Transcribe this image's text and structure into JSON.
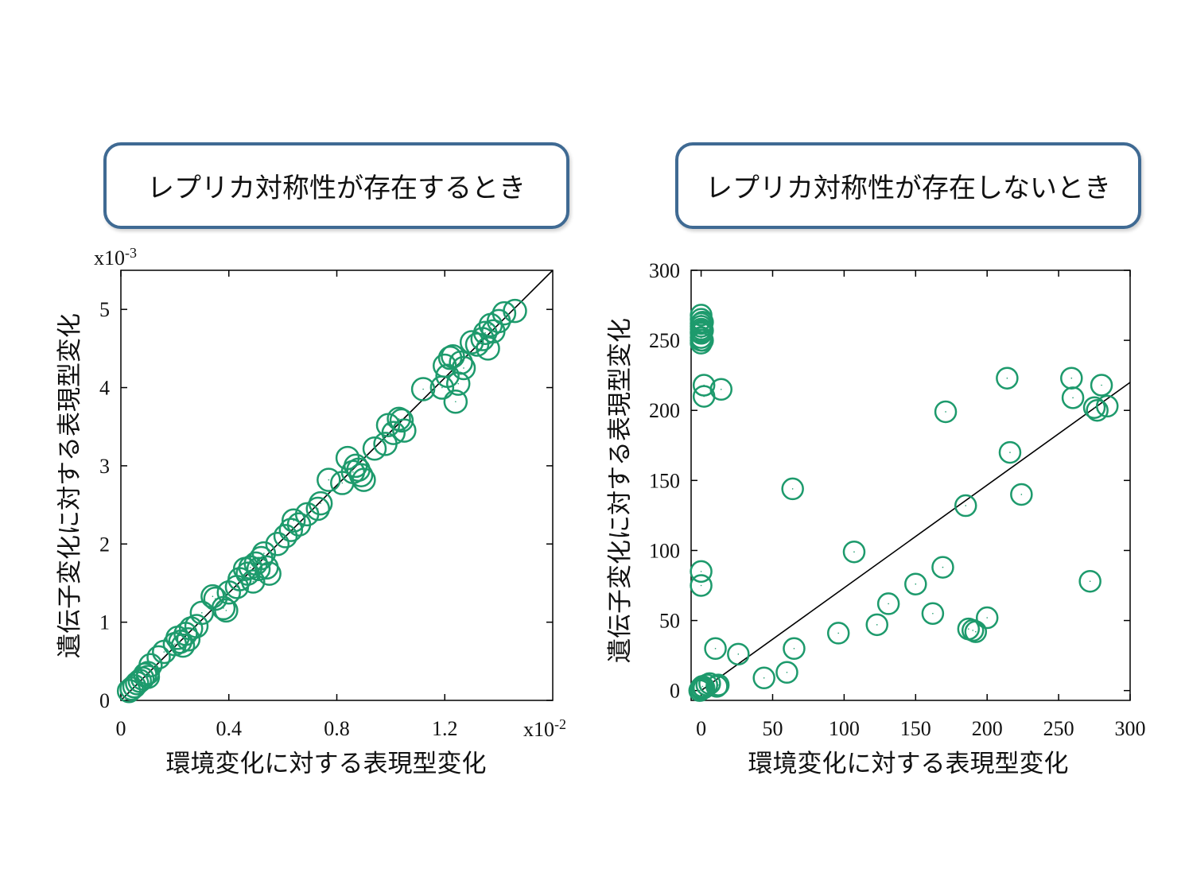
{
  "chart_data": [
    {
      "type": "scatter",
      "title": "レプリカ対称性が存在するとき",
      "xlabel": "環境変化に対する表現型変化",
      "ylabel": "遺伝子変化に対する表現型変化",
      "x_multiplier": "x10",
      "x_multiplier_exp": "-2",
      "y_multiplier": "x10",
      "y_multiplier_exp": "-3",
      "xlim": [
        0,
        1.6
      ],
      "ylim": [
        0,
        5.5
      ],
      "xticks": [
        "0",
        "0.4",
        "0.8",
        "1.2"
      ],
      "xtick_values": [
        0,
        0.4,
        0.8,
        1.2
      ],
      "yticks": [
        "0",
        "1",
        "2",
        "3",
        "4",
        "5"
      ],
      "ytick_values": [
        0,
        1,
        2,
        3,
        4,
        5
      ],
      "point_color": "#1d9a6c",
      "fit_line": {
        "x": [
          0,
          1.6
        ],
        "y": [
          0,
          5.5
        ]
      },
      "series": [
        {
          "x": [
            0.03,
            0.04,
            0.05,
            0.06,
            0.07,
            0.08,
            0.09,
            0.1,
            0.1,
            0.11,
            0.14,
            0.16,
            0.2,
            0.21,
            0.22,
            0.23,
            0.24,
            0.25,
            0.26,
            0.28,
            0.3,
            0.34,
            0.35,
            0.38,
            0.39,
            0.4,
            0.43,
            0.44,
            0.46,
            0.47,
            0.48,
            0.49,
            0.5,
            0.51,
            0.52,
            0.53,
            0.54,
            0.55,
            0.58,
            0.61,
            0.63,
            0.64,
            0.66,
            0.69,
            0.73,
            0.74,
            0.77,
            0.82,
            0.84,
            0.86,
            0.87,
            0.88,
            0.89,
            0.9,
            0.94,
            0.98,
            0.99,
            1.01,
            1.03,
            1.04,
            1.05,
            1.12,
            1.19,
            1.2,
            1.21,
            1.22,
            1.23,
            1.24,
            1.25,
            1.26,
            1.27,
            1.3,
            1.32,
            1.34,
            1.35,
            1.36,
            1.37,
            1.38,
            1.4,
            1.42,
            1.46
          ],
          "y": [
            0.12,
            0.15,
            0.18,
            0.22,
            0.25,
            0.28,
            0.33,
            0.35,
            0.3,
            0.45,
            0.55,
            0.62,
            0.72,
            0.8,
            0.75,
            0.7,
            0.85,
            0.78,
            0.92,
            0.95,
            1.12,
            1.33,
            1.3,
            1.18,
            1.15,
            1.38,
            1.45,
            1.55,
            1.68,
            1.62,
            1.7,
            1.52,
            1.75,
            1.68,
            1.82,
            1.88,
            1.7,
            1.62,
            2.0,
            2.1,
            2.18,
            2.3,
            2.25,
            2.38,
            2.45,
            2.52,
            2.82,
            2.78,
            3.1,
            2.92,
            3.0,
            2.95,
            2.88,
            2.82,
            3.22,
            3.28,
            3.52,
            3.42,
            3.6,
            3.58,
            3.45,
            3.98,
            4.0,
            4.28,
            4.15,
            4.38,
            4.4,
            3.82,
            4.05,
            4.32,
            4.25,
            4.58,
            4.55,
            4.62,
            4.7,
            4.5,
            4.8,
            4.72,
            4.85,
            4.95,
            4.98
          ]
        }
      ]
    },
    {
      "type": "scatter",
      "title": "レプリカ対称性が存在しないとき",
      "xlabel": "環境変化に対する表現型変化",
      "ylabel": "遺伝子変化に対する表現型変化",
      "xlim": [
        -7,
        300
      ],
      "ylim": [
        -7,
        300
      ],
      "xticks": [
        "0",
        "50",
        "100",
        "150",
        "200",
        "250",
        "300"
      ],
      "xtick_values": [
        0,
        50,
        100,
        150,
        200,
        250,
        300
      ],
      "yticks": [
        "0",
        "50",
        "100",
        "150",
        "200",
        "250",
        "300"
      ],
      "ytick_values": [
        0,
        50,
        100,
        150,
        200,
        250,
        300
      ],
      "point_color": "#1d9a6c",
      "fit_line": {
        "x": [
          0,
          300
        ],
        "y": [
          0,
          220
        ]
      },
      "series": [
        {
          "x": [
            0,
            0,
            0,
            0,
            0,
            0,
            0,
            0,
            0,
            1,
            1,
            0,
            2,
            14,
            2,
            1,
            0,
            0,
            -1,
            0,
            0,
            1,
            2,
            4,
            6,
            10,
            11,
            12,
            26,
            44,
            60,
            64,
            65,
            96,
            107,
            123,
            131,
            150,
            162,
            169,
            171,
            185,
            187,
            190,
            192,
            200,
            214,
            216,
            224,
            259,
            260,
            272,
            275,
            277,
            280,
            284
          ],
          "y": [
            268,
            265,
            262,
            260,
            258,
            255,
            252,
            250,
            248,
            263,
            257,
            256,
            218,
            215,
            210,
            250,
            85,
            75,
            0,
            1,
            2,
            3,
            2,
            4,
            5,
            30,
            3,
            4,
            26,
            9,
            13,
            144,
            30,
            41,
            99,
            47,
            62,
            76,
            55,
            88,
            199,
            132,
            44,
            43,
            42,
            52,
            223,
            170,
            140,
            223,
            209,
            78,
            202,
            200,
            218,
            203
          ]
        }
      ]
    }
  ]
}
